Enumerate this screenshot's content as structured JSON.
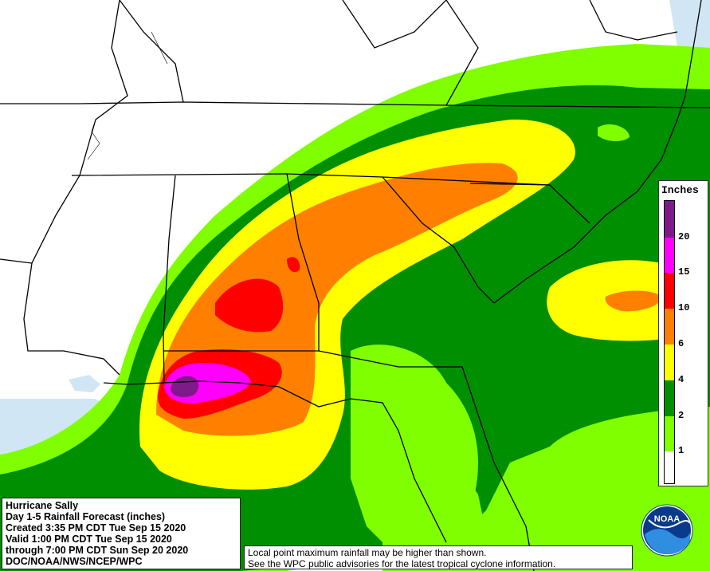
{
  "info": {
    "line1": "Hurricane Sally",
    "line2": "Day 1-5 Rainfall Forecast (inches)",
    "line3": "Created 3:35 PM CDT Tue Sep 15 2020",
    "line4": "Valid 1:00 PM CDT Tue Sep 15 2020",
    "line5": "through 7:00 PM CDT Sun Sep 20 2020",
    "line6": "DOC/NOAA/NWS/NCEP/WPC"
  },
  "disclaimer": {
    "line1": "Local point maximum rainfall may be higher than shown.",
    "line2": "See the WPC public advisories for the latest tropical cyclone information."
  },
  "legend": {
    "title": "Inches",
    "labels": [
      "20",
      "15",
      "10",
      "6",
      "4",
      "2",
      "1"
    ],
    "colors": {
      "c20plus": "#7f1a8a",
      "c15_20": "#ff00ff",
      "c10_15": "#ff0000",
      "c6_10": "#ff8000",
      "c4_6": "#ffff00",
      "c2_4": "#008f00",
      "c1_2": "#7fff00",
      "c0_1": "#ffffff"
    }
  },
  "logo": {
    "text": "NOAA",
    "icon": "noaa-logo-icon"
  },
  "map": {
    "water_color": "#d0e6f5",
    "border_color": "#000000"
  }
}
